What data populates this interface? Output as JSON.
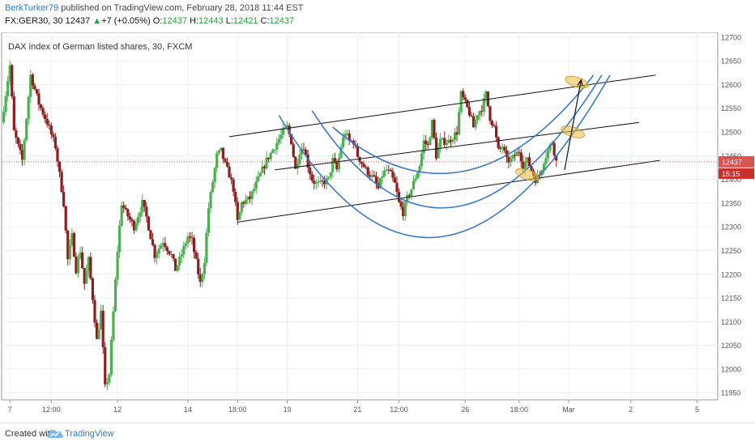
{
  "header": {
    "author": "BerkTurker79",
    "published_text": "published on TradingView.com, February 28, 2018 11:44 EST",
    "symbol_line": {
      "symbol": "FX:GER30, 30",
      "last": "12437",
      "arrow": "▲",
      "change": "+7 (+0.05%)",
      "open_label": "O:",
      "open": "12437",
      "high_label": "H:",
      "high": "12443",
      "low_label": "L:",
      "low": "12421",
      "close_label": "C:",
      "close": "12437"
    }
  },
  "footer": {
    "created_with": "Created with",
    "brand": "TradingView",
    "logo_icon": "tradingview-cloud-icon"
  },
  "colors": {
    "bull": "#4caf50",
    "bear": "#8b1e1e",
    "price_line": "#e05050",
    "curve": "#3a78c8",
    "trendline": "#111111",
    "ellipse": "#e9b93a",
    "author": "#2a7bd1",
    "brand": "#2a7bd1"
  },
  "chart_data": {
    "type": "candlestick",
    "title": "DAX index of German listed shares, 30, FXCM",
    "last_price_label": "12437",
    "countdown_label": "15:15",
    "y_axis": {
      "range": [
        11935,
        12710
      ],
      "ticks": [
        11950,
        12000,
        12050,
        12100,
        12150,
        12200,
        12250,
        12300,
        12350,
        12400,
        12450,
        12500,
        12550,
        12600,
        12650,
        12700
      ]
    },
    "x_axis": {
      "range": [
        0,
        173
      ],
      "ticks": [
        {
          "label": "7",
          "x": 2
        },
        {
          "label": "12:00",
          "x": 12
        },
        {
          "label": "12",
          "x": 28
        },
        {
          "label": "14",
          "x": 45
        },
        {
          "label": "18:00",
          "x": 57
        },
        {
          "label": "19",
          "x": 69
        },
        {
          "label": "21",
          "x": 86
        },
        {
          "label": "12:00",
          "x": 96
        },
        {
          "label": "26",
          "x": 112
        },
        {
          "label": "18:00",
          "x": 125
        },
        {
          "label": "Mar",
          "x": 137
        },
        {
          "label": "2",
          "x": 152
        },
        {
          "label": "5",
          "x": 168
        }
      ]
    },
    "grid": true,
    "price_path": [
      [
        0,
        12520
      ],
      [
        2,
        12640
      ],
      [
        3,
        12500
      ],
      [
        5,
        12440
      ],
      [
        7,
        12620
      ],
      [
        9,
        12560
      ],
      [
        11,
        12520
      ],
      [
        13,
        12470
      ],
      [
        15,
        12350
      ],
      [
        16,
        12230
      ],
      [
        17,
        12280
      ],
      [
        18,
        12210
      ],
      [
        19,
        12250
      ],
      [
        20,
        12180
      ],
      [
        21,
        12230
      ],
      [
        22,
        12150
      ],
      [
        23,
        12060
      ],
      [
        24,
        12120
      ],
      [
        25,
        11960
      ],
      [
        26,
        11990
      ],
      [
        27,
        12120
      ],
      [
        28,
        12250
      ],
      [
        29,
        12350
      ],
      [
        30,
        12330
      ],
      [
        32,
        12300
      ],
      [
        34,
        12350
      ],
      [
        35,
        12320
      ],
      [
        37,
        12240
      ],
      [
        39,
        12270
      ],
      [
        41,
        12240
      ],
      [
        42,
        12210
      ],
      [
        43,
        12230
      ],
      [
        45,
        12280
      ],
      [
        46,
        12270
      ],
      [
        48,
        12180
      ],
      [
        49,
        12230
      ],
      [
        50,
        12340
      ],
      [
        52,
        12450
      ],
      [
        53,
        12460
      ],
      [
        54,
        12430
      ],
      [
        55,
        12410
      ],
      [
        56,
        12380
      ],
      [
        57,
        12310
      ],
      [
        58,
        12350
      ],
      [
        60,
        12360
      ],
      [
        62,
        12400
      ],
      [
        64,
        12440
      ],
      [
        66,
        12470
      ],
      [
        68,
        12500
      ],
      [
        69,
        12510
      ],
      [
        70,
        12480
      ],
      [
        71,
        12420
      ],
      [
        72,
        12460
      ],
      [
        73,
        12470
      ],
      [
        74,
        12430
      ],
      [
        75,
        12400
      ],
      [
        76,
        12390
      ],
      [
        77,
        12390
      ],
      [
        79,
        12400
      ],
      [
        80,
        12440
      ],
      [
        81,
        12420
      ],
      [
        82,
        12470
      ],
      [
        83,
        12500
      ],
      [
        84,
        12480
      ],
      [
        85,
        12480
      ],
      [
        86,
        12450
      ],
      [
        88,
        12420
      ],
      [
        90,
        12400
      ],
      [
        91,
        12380
      ],
      [
        92,
        12410
      ],
      [
        93,
        12420
      ],
      [
        94,
        12410
      ],
      [
        95,
        12390
      ],
      [
        96,
        12350
      ],
      [
        97,
        12330
      ],
      [
        98,
        12360
      ],
      [
        99,
        12380
      ],
      [
        101,
        12430
      ],
      [
        102,
        12480
      ],
      [
        103,
        12470
      ],
      [
        104,
        12520
      ],
      [
        105,
        12450
      ],
      [
        106,
        12480
      ],
      [
        108,
        12480
      ],
      [
        110,
        12500
      ],
      [
        111,
        12580
      ],
      [
        112,
        12560
      ],
      [
        113,
        12540
      ],
      [
        114,
        12510
      ],
      [
        115,
        12540
      ],
      [
        116,
        12550
      ],
      [
        117,
        12580
      ],
      [
        118,
        12530
      ],
      [
        119,
        12510
      ],
      [
        120,
        12460
      ],
      [
        121,
        12470
      ],
      [
        122,
        12440
      ],
      [
        123,
        12440
      ],
      [
        124,
        12450
      ],
      [
        125,
        12460
      ],
      [
        126,
        12430
      ],
      [
        127,
        12440
      ],
      [
        128,
        12420
      ],
      [
        129,
        12400
      ],
      [
        130,
        12410
      ],
      [
        131,
        12440
      ],
      [
        132,
        12460
      ],
      [
        133,
        12480
      ],
      [
        134,
        12437
      ]
    ],
    "annotations": {
      "channel_lines": [
        {
          "name": "channel-upper-line",
          "from": [
            55,
            12490
          ],
          "to": [
            158,
            12620
          ]
        },
        {
          "name": "channel-middle-line",
          "from": [
            66,
            12420
          ],
          "to": [
            154,
            12520
          ]
        },
        {
          "name": "channel-lower-line",
          "from": [
            57,
            12310
          ],
          "to": [
            159,
            12440
          ]
        }
      ],
      "arcs": [
        {
          "name": "arc-curve-outer",
          "from": [
            67,
            12535
          ],
          "control": [
            105,
            11980
          ],
          "to": [
            147,
            12620
          ]
        },
        {
          "name": "arc-curve-middle",
          "from": [
            75,
            12545
          ],
          "control": [
            108,
            12100
          ],
          "to": [
            145,
            12620
          ]
        },
        {
          "name": "arc-curve-inner",
          "from": [
            80,
            12510
          ],
          "control": [
            112,
            12270
          ],
          "to": [
            143,
            12620
          ]
        }
      ],
      "arrows": [
        {
          "name": "projection-arrow",
          "from": [
            136,
            12420
          ],
          "to": [
            140,
            12610
          ]
        }
      ],
      "ellipses": [
        {
          "name": "target-ellipse-top",
          "at": [
            139,
            12605
          ]
        },
        {
          "name": "target-ellipse-middle",
          "at": [
            138,
            12500
          ]
        },
        {
          "name": "target-ellipse-bottom",
          "at": [
            127,
            12410
          ]
        }
      ]
    }
  }
}
